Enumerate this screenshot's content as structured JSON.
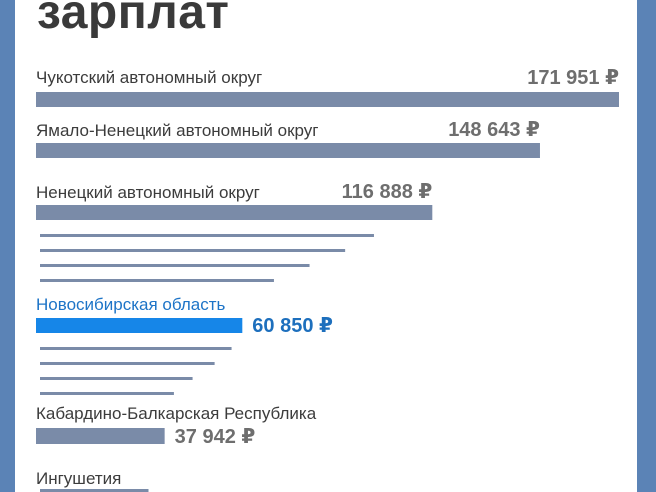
{
  "title": "зарплат",
  "colors": {
    "bar": "#7a8ba8",
    "highlight": "#1686e8",
    "thin": "#7a8ba8",
    "background": "#5b83b6"
  },
  "chart_data": {
    "type": "bar",
    "orientation": "horizontal",
    "currency": "₽",
    "series": [
      {
        "label": "Чукотский автономный округ",
        "value": 171951,
        "display": "171 951 ₽"
      },
      {
        "label": "Ямало-Ненецкий автономный округ",
        "value": 148643,
        "display": "148 643 ₽"
      },
      {
        "label": "Ненецкий автономный округ",
        "value": 116888,
        "display": "116 888 ₽"
      },
      {
        "label": "",
        "value": 98500
      },
      {
        "label": "",
        "value": 90000
      },
      {
        "label": "",
        "value": 79500
      },
      {
        "label": "",
        "value": 69000
      },
      {
        "label": "Новосибирская область",
        "value": 60850,
        "display": "60 850 ₽",
        "highlight": true
      },
      {
        "label": "",
        "value": 56500
      },
      {
        "label": "",
        "value": 51500
      },
      {
        "label": "",
        "value": 45000
      },
      {
        "label": "",
        "value": 39500
      },
      {
        "label": "Кабардино-Балкарская Республика",
        "value": 37942,
        "display": "37 942 ₽"
      },
      {
        "label": "Ингушетия",
        "value": 32000
      }
    ]
  }
}
